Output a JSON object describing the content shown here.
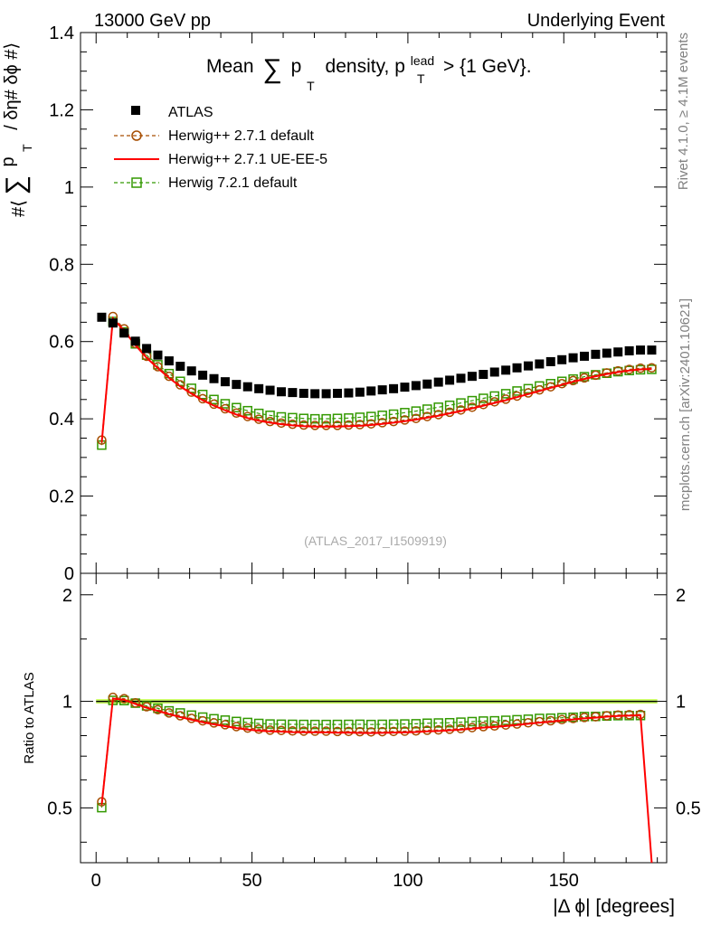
{
  "header": {
    "left": "13000 GeV pp",
    "right": "Underlying Event"
  },
  "side_labels": {
    "rivet": "Rivet 4.1.0, ≥ 4.1M events",
    "mcplots": "mcplots.cern.ch [arXiv:2401.10621]"
  },
  "chart_data": {
    "type": "line",
    "title": "Mean ∑ p_T density, p_T^lead > {1 GeV}.",
    "title_parts": {
      "pre": "Mean",
      "sum": "∑",
      "p": "p",
      "sub": "T",
      "mid": "density, p",
      "sup": "lead",
      "post": "> {1 GeV}."
    },
    "ylabel_parts": {
      "pre": "#⟨",
      "sum": "∑",
      "p": "p",
      "sub": "T",
      "post": "/ δη# δϕ #⟩"
    },
    "xlabel": "|Δ ϕ| [degrees]",
    "analysis_id": "(ATLAS_2017_I1509919)",
    "ratio_ylabel": "Ratio to ATLAS",
    "xlim": [
      -5,
      183
    ],
    "ylim": [
      0,
      1.4
    ],
    "ratio_ylim": [
      0.35,
      2.3
    ],
    "x_ticks": [
      0,
      50,
      100,
      150
    ],
    "y_ticks": [
      0,
      0.2,
      0.4,
      0.6,
      0.8,
      1,
      1.2,
      1.4
    ],
    "y_tick_labels": [
      "0",
      "0.2",
      "0.4",
      "0.6",
      "0.8",
      "1",
      "1.2",
      "1.4"
    ],
    "ratio_y_ticks": [
      0.5,
      1,
      2
    ],
    "ratio_y_tick_labels": [
      "0.5",
      "1",
      "2"
    ],
    "ratio_band": {
      "low": 0.985,
      "high": 1.015,
      "color": "#ccff66"
    },
    "x": [
      1.8,
      5.4,
      9.0,
      12.6,
      16.2,
      19.8,
      23.4,
      27.0,
      30.6,
      34.2,
      37.8,
      41.4,
      45.0,
      48.6,
      52.2,
      55.8,
      59.4,
      63.0,
      66.6,
      70.2,
      73.8,
      77.4,
      81.0,
      84.6,
      88.2,
      91.8,
      95.4,
      99.0,
      102.6,
      106.2,
      109.8,
      113.4,
      117.0,
      120.6,
      124.2,
      127.8,
      131.4,
      135.0,
      138.6,
      142.2,
      145.8,
      149.4,
      153.0,
      156.6,
      160.2,
      163.8,
      167.4,
      171.0,
      174.6,
      178.2
    ],
    "series": [
      {
        "name": "ATLAS",
        "style": "points",
        "color": "#000000",
        "values": [
          0.663,
          0.648,
          0.622,
          0.601,
          0.582,
          0.565,
          0.55,
          0.536,
          0.524,
          0.513,
          0.504,
          0.496,
          0.489,
          0.483,
          0.478,
          0.474,
          0.47,
          0.468,
          0.466,
          0.465,
          0.465,
          0.466,
          0.467,
          0.469,
          0.472,
          0.475,
          0.478,
          0.482,
          0.486,
          0.49,
          0.495,
          0.5,
          0.505,
          0.51,
          0.515,
          0.521,
          0.526,
          0.532,
          0.537,
          0.542,
          0.548,
          0.553,
          0.558,
          0.562,
          0.567,
          0.57,
          0.573,
          0.576,
          0.578,
          0.578
        ]
      },
      {
        "name": "Herwig++ 2.7.1 default",
        "style": "dashed-circle",
        "color": "#a64d00",
        "values": [
          0.345,
          0.665,
          0.633,
          0.595,
          0.562,
          0.535,
          0.51,
          0.488,
          0.469,
          0.452,
          0.438,
          0.426,
          0.415,
          0.406,
          0.399,
          0.393,
          0.389,
          0.386,
          0.384,
          0.383,
          0.383,
          0.383,
          0.384,
          0.385,
          0.387,
          0.39,
          0.393,
          0.397,
          0.401,
          0.406,
          0.411,
          0.417,
          0.423,
          0.43,
          0.437,
          0.444,
          0.451,
          0.459,
          0.467,
          0.475,
          0.483,
          0.491,
          0.499,
          0.506,
          0.513,
          0.519,
          0.524,
          0.528,
          0.531,
          0.532
        ]
      },
      {
        "name": "Herwig++ 2.7.1 UE-EE-5",
        "style": "solid",
        "color": "#ff0000",
        "values": [
          0.338,
          0.66,
          0.628,
          0.591,
          0.558,
          0.531,
          0.506,
          0.484,
          0.465,
          0.448,
          0.434,
          0.422,
          0.411,
          0.402,
          0.395,
          0.39,
          0.386,
          0.383,
          0.381,
          0.38,
          0.38,
          0.38,
          0.381,
          0.382,
          0.384,
          0.387,
          0.39,
          0.394,
          0.398,
          0.403,
          0.408,
          0.414,
          0.42,
          0.427,
          0.434,
          0.441,
          0.448,
          0.456,
          0.464,
          0.472,
          0.48,
          0.488,
          0.496,
          0.503,
          0.51,
          0.516,
          0.521,
          0.525,
          0.528,
          0.529
        ]
      },
      {
        "name": "Herwig 7.2.1 default",
        "style": "dashed-square",
        "color": "#339900",
        "values": [
          0.332,
          0.652,
          0.625,
          0.594,
          0.565,
          0.54,
          0.517,
          0.497,
          0.479,
          0.463,
          0.45,
          0.439,
          0.429,
          0.421,
          0.414,
          0.409,
          0.405,
          0.403,
          0.401,
          0.4,
          0.4,
          0.401,
          0.402,
          0.404,
          0.406,
          0.409,
          0.412,
          0.416,
          0.42,
          0.425,
          0.43,
          0.435,
          0.441,
          0.447,
          0.453,
          0.459,
          0.465,
          0.472,
          0.478,
          0.485,
          0.491,
          0.497,
          0.503,
          0.509,
          0.514,
          0.518,
          0.522,
          0.525,
          0.527,
          0.528
        ]
      }
    ],
    "ratio_last_bin_clipped": true
  }
}
